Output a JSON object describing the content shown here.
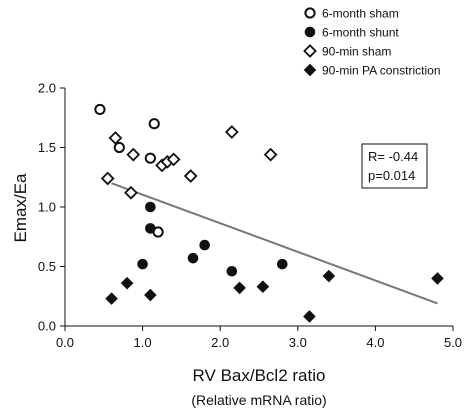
{
  "chart_data": {
    "type": "scatter",
    "title": "",
    "xlabel": "RV Bax/Bcl2 ratio",
    "xlabel_sub": "(Relative mRNA ratio)",
    "ylabel": "Emax/Ea",
    "xlim": [
      0,
      5
    ],
    "ylim": [
      0,
      2
    ],
    "xticks": [
      "0.0",
      "1.0",
      "2.0",
      "3.0",
      "4.0",
      "5.0"
    ],
    "yticks": [
      "0.0",
      "0.5",
      "1.0",
      "1.5",
      "2.0"
    ],
    "grid": false,
    "legend_position": "top-right",
    "annotation": {
      "r_text": "R= -0.44",
      "p_text": "p=0.014"
    },
    "trendline": {
      "x": [
        0.6,
        4.8
      ],
      "y": [
        1.2,
        0.19
      ]
    },
    "series": [
      {
        "name": "6-month sham",
        "marker": "open-circle",
        "points": [
          [
            0.45,
            1.82
          ],
          [
            0.7,
            1.5
          ],
          [
            1.15,
            1.7
          ],
          [
            1.1,
            1.41
          ],
          [
            1.2,
            0.79
          ]
        ]
      },
      {
        "name": "6-month shunt",
        "marker": "filled-circle",
        "points": [
          [
            1.1,
            1.0
          ],
          [
            1.1,
            0.82
          ],
          [
            1.0,
            0.52
          ],
          [
            1.8,
            0.68
          ],
          [
            1.65,
            0.57
          ],
          [
            2.15,
            0.46
          ],
          [
            2.8,
            0.52
          ]
        ]
      },
      {
        "name": "90-min sham",
        "marker": "open-diamond",
        "points": [
          [
            0.55,
            1.24
          ],
          [
            0.65,
            1.58
          ],
          [
            0.88,
            1.44
          ],
          [
            0.85,
            1.12
          ],
          [
            1.25,
            1.35
          ],
          [
            1.32,
            1.38
          ],
          [
            1.4,
            1.4
          ],
          [
            1.62,
            1.26
          ],
          [
            2.15,
            1.63
          ],
          [
            2.65,
            1.44
          ]
        ]
      },
      {
        "name": "90-min PA constriction",
        "marker": "filled-diamond",
        "points": [
          [
            0.6,
            0.23
          ],
          [
            0.8,
            0.36
          ],
          [
            1.1,
            0.26
          ],
          [
            2.25,
            0.32
          ],
          [
            2.55,
            0.33
          ],
          [
            3.15,
            0.08
          ],
          [
            3.4,
            0.42
          ],
          [
            4.8,
            0.4
          ]
        ]
      }
    ]
  }
}
